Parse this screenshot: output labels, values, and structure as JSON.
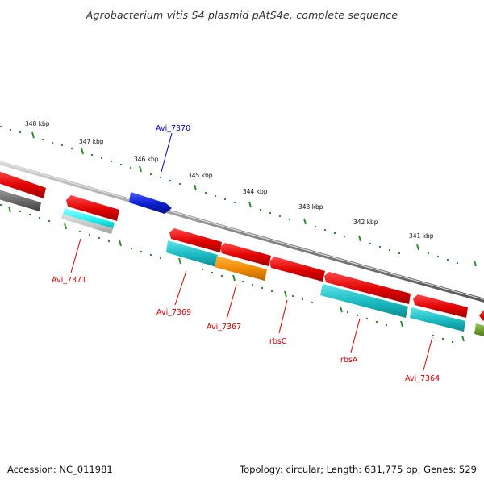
{
  "title": "Agrobacterium vitis S4 plasmid pAtS4e, complete sequence",
  "footer": {
    "accession": "Accession: NC_011981",
    "topology": "Topology: circular; Length: 631,775 bp; Genes: 529"
  },
  "colors": {
    "backbone": "#8a8a8a",
    "tick": "#2e8b2e",
    "gene_red": "#e00000",
    "gene_cyan": "#19b9c0",
    "gene_orange": "#f08a00",
    "gene_blue": "#0a1fd0",
    "gene_gray": "#6a6a6a",
    "gene_olive": "#6c9a2c",
    "label_red": "#d40000",
    "label_blue": "#0000cc"
  },
  "scale": {
    "unit": "kbp",
    "ticks": [
      "348 kbp",
      "347 kbp",
      "346 kbp",
      "345 kbp",
      "344 kbp",
      "343 kbp",
      "342 kbp",
      "341 kbp"
    ]
  },
  "genes": [
    {
      "label": "Avi_7370",
      "color": "blue"
    },
    {
      "label": "Avi_7371",
      "color": "red"
    },
    {
      "label": "Avi_7369",
      "color": "red"
    },
    {
      "label": "Avi_7367",
      "color": "red"
    },
    {
      "label": "rbsC",
      "color": "red"
    },
    {
      "label": "rbsA",
      "color": "red"
    },
    {
      "label": "Avi_7364",
      "color": "red"
    }
  ]
}
